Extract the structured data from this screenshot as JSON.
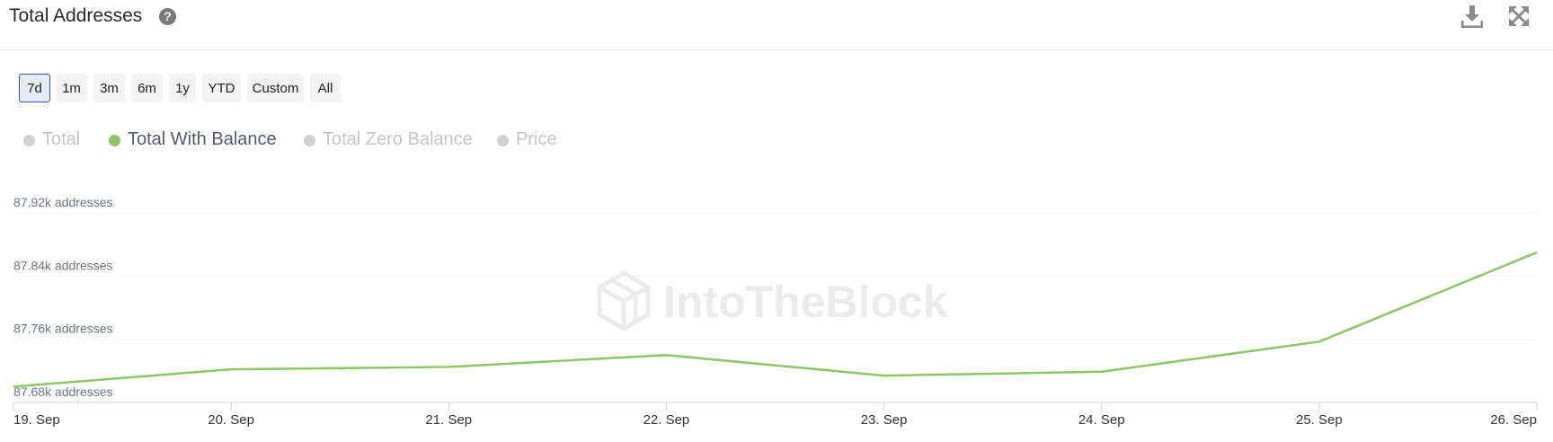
{
  "header": {
    "title": "Total Addresses",
    "help_symbol": "?"
  },
  "ranges": [
    {
      "label": "7d",
      "active": true
    },
    {
      "label": "1m",
      "active": false
    },
    {
      "label": "3m",
      "active": false
    },
    {
      "label": "6m",
      "active": false
    },
    {
      "label": "1y",
      "active": false
    },
    {
      "label": "YTD",
      "active": false
    },
    {
      "label": "Custom",
      "active": false
    },
    {
      "label": "All",
      "active": false
    }
  ],
  "legend": [
    {
      "label": "Total",
      "active": false,
      "color": "#d0d0d0"
    },
    {
      "label": "Total With Balance",
      "active": true,
      "color": "#8cc665"
    },
    {
      "label": "Total Zero Balance",
      "active": false,
      "color": "#d0d0d0"
    },
    {
      "label": "Price",
      "active": false,
      "color": "#d0d0d0"
    }
  ],
  "watermark": "IntoTheBlock",
  "chart_data": {
    "type": "line",
    "x": [
      "19. Sep",
      "20. Sep",
      "21. Sep",
      "22. Sep",
      "23. Sep",
      "24. Sep",
      "25. Sep",
      "26. Sep"
    ],
    "series": [
      {
        "name": "Total With Balance",
        "color": "#8cc665",
        "values": [
          87700,
          87722,
          87725,
          87740,
          87714,
          87719,
          87757,
          87870
        ]
      }
    ],
    "ylim": [
      87680,
      87920
    ],
    "yticks": [
      {
        "value": 87680,
        "label": "87.68k addresses"
      },
      {
        "value": 87760,
        "label": "87.76k addresses"
      },
      {
        "value": 87840,
        "label": "87.84k addresses"
      },
      {
        "value": 87920,
        "label": "87.92k addresses"
      }
    ],
    "grid": true
  }
}
